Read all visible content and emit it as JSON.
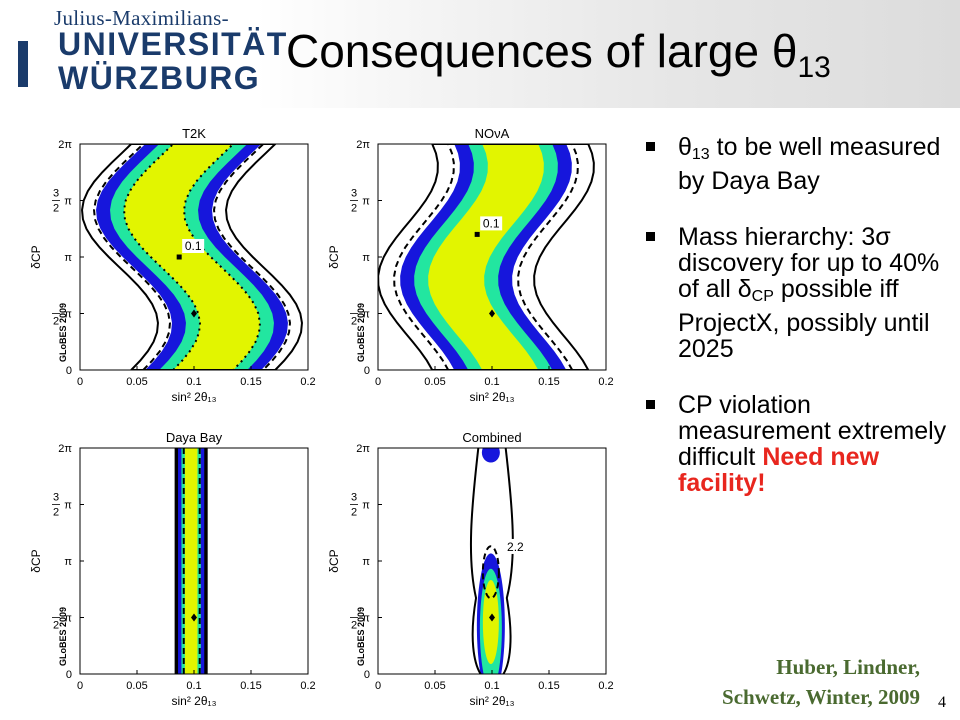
{
  "header": {
    "logo_line1": "Julius-Maximilians-",
    "logo_line2": "UNIVERSITÄT",
    "logo_line3": "WÜRZBURG",
    "title_main": "Consequences of large θ",
    "title_sub": "13"
  },
  "bullets": [
    {
      "pre": "θ",
      "sub": "13",
      "text": " to be well measured by Daya Bay"
    },
    {
      "text_a": "Mass hierarchy: 3σ discovery for up to 40% of all δ",
      "sub": "CP",
      "text_b": " possible iff ProjectX, possibly until 2025"
    },
    {
      "text": "CP violation measurement extremely difficult ",
      "highlight": "Need new facility!"
    }
  ],
  "citation": {
    "line1": "Huber, Lindner,",
    "line2": "Schwetz, Winter, 2009"
  },
  "page_number": "4",
  "chart_data": [
    {
      "type": "contour",
      "title": "T2K",
      "xlabel": "sin² 2θ₁₃",
      "ylabel": "δCP",
      "watermark": "GLoBES 2009",
      "xlim": [
        0,
        0.2
      ],
      "xticks": [
        "0",
        "0.05",
        "0.1",
        "0.15",
        "0.2"
      ],
      "yticks": [
        "0",
        "π/2",
        "π",
        "3π/2",
        "2π"
      ],
      "best_fit": {
        "x": 0.1,
        "y": "π/2"
      },
      "marker": {
        "x": 0.087,
        "y": "π",
        "label": "0.1"
      }
    },
    {
      "type": "contour",
      "title": "NOνA",
      "xlabel": "sin² 2θ₁₃",
      "ylabel": "δCP",
      "watermark": "GLoBES 2009",
      "xlim": [
        0,
        0.2
      ],
      "xticks": [
        "0",
        "0.05",
        "0.1",
        "0.15",
        "0.2"
      ],
      "yticks": [
        "0",
        "π/2",
        "π",
        "3π/2",
        "2π"
      ],
      "best_fit": {
        "x": 0.1,
        "y": "π/2"
      },
      "marker": {
        "x": 0.087,
        "y": "1.2π",
        "label": "0.1"
      }
    },
    {
      "type": "contour",
      "title": "Daya Bay",
      "xlabel": "sin² 2θ₁₃",
      "ylabel": "δCP",
      "watermark": "GLoBES 2009",
      "xlim": [
        0,
        0.2
      ],
      "xticks": [
        "0",
        "0.05",
        "0.1",
        "0.15",
        "0.2"
      ],
      "yticks": [
        "0",
        "π/2",
        "π",
        "3π/2",
        "2π"
      ],
      "best_fit": {
        "x": 0.1,
        "y": "π/2"
      }
    },
    {
      "type": "contour",
      "title": "Combined",
      "xlabel": "sin² 2θ₁₃",
      "ylabel": "δCP",
      "watermark": "GLoBES 2009",
      "xlim": [
        0,
        0.2
      ],
      "xticks": [
        "0",
        "0.05",
        "0.1",
        "0.15",
        "0.2"
      ],
      "yticks": [
        "0",
        "π/2",
        "π",
        "3π/2",
        "2π"
      ],
      "best_fit": {
        "x": 0.1,
        "y": "π/2"
      },
      "annotation": "2.2"
    }
  ],
  "colors": {
    "outer": "#1616dc",
    "middle": "#22e6a0",
    "inner": "#e2f500",
    "logo": "#1a3b6b",
    "highlight": "#e8261e",
    "citation": "#4a6a30"
  }
}
